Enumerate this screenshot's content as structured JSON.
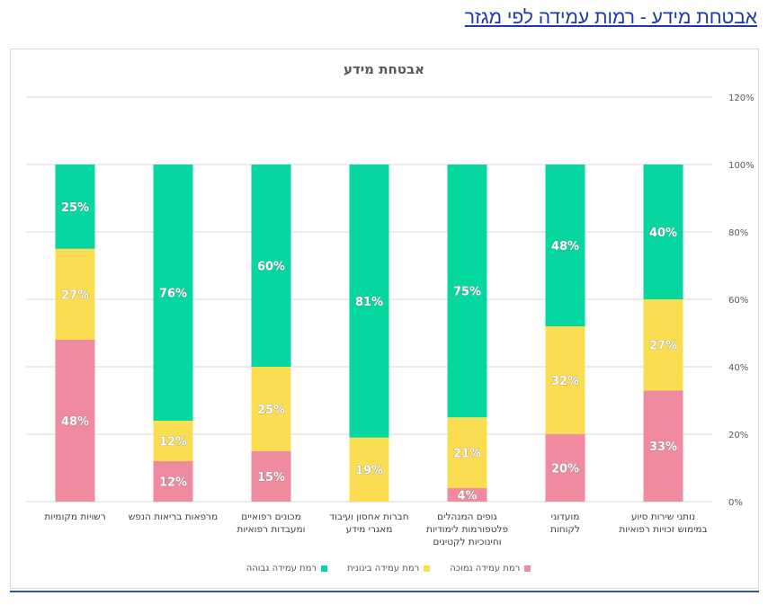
{
  "page": {
    "heading": "אבטחת מידע - רמות עמידה לפי מגזר"
  },
  "chart_data": {
    "type": "bar",
    "stacked": true,
    "title": "אבטחת מידע",
    "categories": [
      [
        "רשויות מקומיות"
      ],
      [
        "מרפאות בריאות הנפש"
      ],
      [
        "מכונים רפואיים",
        "ומעבדות רפואיות"
      ],
      [
        "חברות אחסון ועיבוד",
        "מאגרי מידע"
      ],
      [
        "גופים המנהלים",
        "פלטפורמות לימודיות",
        "וחינוכיות לקטינים"
      ],
      [
        "מועדוני",
        "לקוחות"
      ],
      [
        "נותני שירות סיוע",
        "במימוש זכויות רפואיות"
      ]
    ],
    "series": [
      {
        "name": "רמת עמידה נמוכה",
        "color": "#f08a9f",
        "values": [
          48,
          12,
          15,
          0,
          4,
          20,
          33
        ],
        "labels": [
          "48%",
          "12%",
          "15%",
          "",
          "4%",
          "20%",
          "33%"
        ]
      },
      {
        "name": "רמת עמידה בינונית",
        "color": "#fbdd52",
        "values": [
          27,
          12,
          25,
          19,
          21,
          32,
          27
        ],
        "labels": [
          "27%",
          "12%",
          "25%",
          "19%",
          "21%",
          "32%",
          "27%"
        ]
      },
      {
        "name": "רמת עמידה גבוהה",
        "color": "#06d6a0",
        "values": [
          25,
          76,
          60,
          81,
          75,
          48,
          40
        ],
        "labels": [
          "25%",
          "76%",
          "60%",
          "81%",
          "75%",
          "48%",
          "40%"
        ]
      }
    ],
    "y_ticks": [
      "0%",
      "20%",
      "40%",
      "60%",
      "80%",
      "100%",
      "120%"
    ],
    "ylim": [
      0,
      120
    ],
    "y_axis_side": "right",
    "grid": true,
    "legend_position": "bottom"
  }
}
